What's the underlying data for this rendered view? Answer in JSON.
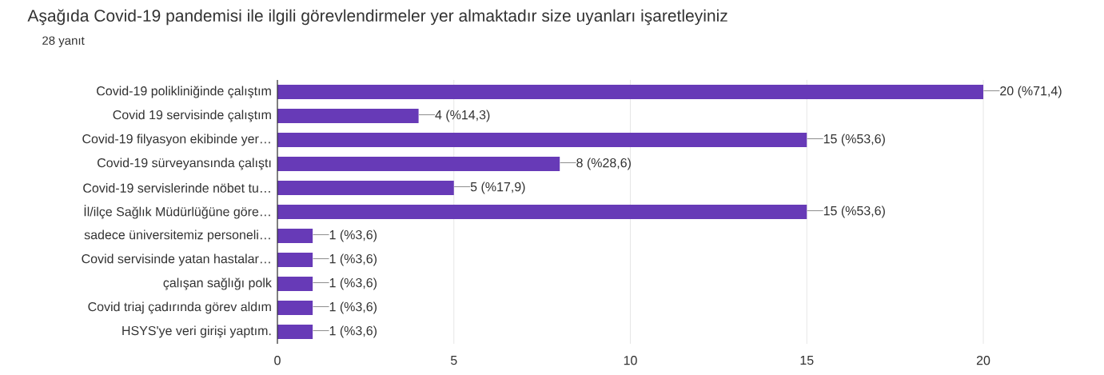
{
  "chart_data": {
    "type": "bar",
    "orientation": "horizontal",
    "title": "Aşağıda Covid-19 pandemisi ile ilgili görevlendirmeler yer almaktadır size uyanları işaretleyiniz",
    "subtitle": "28 yanıt",
    "categories": [
      "Covid-19 polikliniğinde çalıştım",
      "Covid 19 servisinde çalıştım",
      "Covid-19 filyasyon ekibinde yer…",
      "Covid-19 sürveyansında çalıştı",
      "Covid-19 servislerinde nöbet tu…",
      "İl/ilçe Sağlık Müdürlüğüne göre…",
      "sadece üniversitemiz personeli…",
      "Covid servisinde yatan hastalar…",
      "çalışan sağlığı polk",
      "Covid triaj çadırında görev aldım",
      "HSYS'ye veri girişi yaptım."
    ],
    "values": [
      20,
      4,
      15,
      8,
      5,
      15,
      1,
      1,
      1,
      1,
      1
    ],
    "value_labels": [
      "20 (%71,4)",
      "4 (%14,3)",
      "15 (%53,6)",
      "8 (%28,6)",
      "5 (%17,9)",
      "15 (%53,6)",
      "1 (%3,6)",
      "1 (%3,6)",
      "1 (%3,6)",
      "1 (%3,6)",
      "1 (%3,6)"
    ],
    "color": "#673ab7",
    "xlim": [
      0,
      20
    ],
    "xticks": [
      0,
      5,
      10,
      15,
      20
    ],
    "grid": "x"
  }
}
